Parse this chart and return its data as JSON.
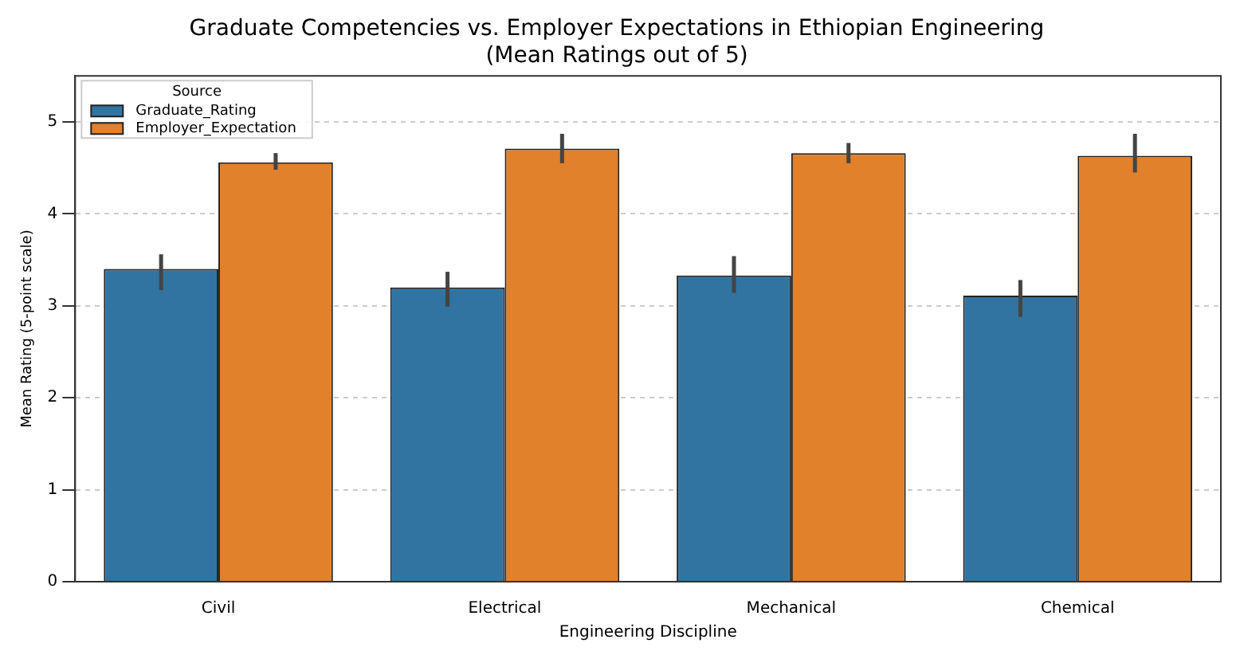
{
  "chart_data": {
    "type": "bar",
    "title": "Graduate Competencies vs. Employer Expectations in Ethiopian Engineering",
    "subtitle": "(Mean Ratings out of 5)",
    "xlabel": "Engineering Discipline",
    "ylabel": "Mean Rating (5-point scale)",
    "legend_title": "Source",
    "categories": [
      "Civil",
      "Electrical",
      "Mechanical",
      "Chemical"
    ],
    "series": [
      {
        "name": "Graduate_Rating",
        "color": "#3274a1",
        "values": [
          3.4,
          3.2,
          3.33,
          3.11
        ],
        "errors": [
          [
            3.17,
            3.56
          ],
          [
            2.99,
            3.37
          ],
          [
            3.14,
            3.54
          ],
          [
            2.88,
            3.28
          ]
        ]
      },
      {
        "name": "Employer_Expectation",
        "color": "#e1812c",
        "values": [
          4.56,
          4.71,
          4.66,
          4.63
        ],
        "errors": [
          [
            4.48,
            4.66
          ],
          [
            4.55,
            4.87
          ],
          [
            4.55,
            4.77
          ],
          [
            4.45,
            4.87
          ]
        ]
      }
    ],
    "ylim": [
      0,
      5.5
    ],
    "yticks": [
      0,
      1,
      2,
      3,
      4,
      5
    ],
    "grid": "y",
    "legend": "top left"
  }
}
